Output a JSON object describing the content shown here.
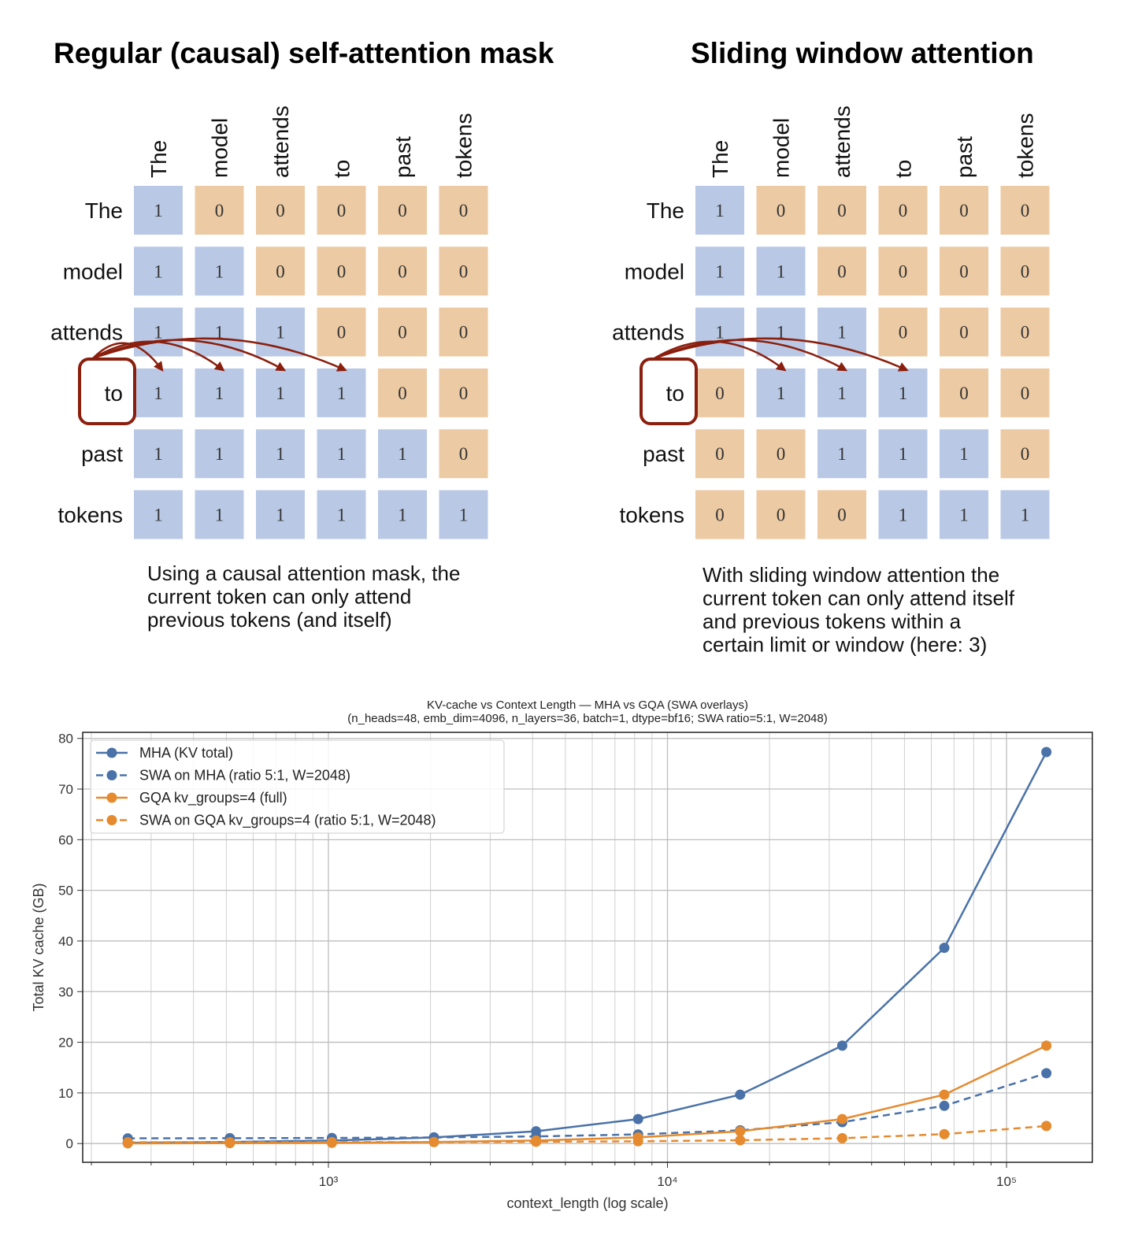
{
  "diagrams": [
    {
      "title": "Regular (causal) self-attention mask",
      "tokens": [
        "The",
        "model",
        "attends",
        "to",
        "past",
        "tokens"
      ],
      "mask": [
        [
          1,
          0,
          0,
          0,
          0,
          0
        ],
        [
          1,
          1,
          0,
          0,
          0,
          0
        ],
        [
          1,
          1,
          1,
          0,
          0,
          0
        ],
        [
          1,
          1,
          1,
          1,
          0,
          0
        ],
        [
          1,
          1,
          1,
          1,
          1,
          0
        ],
        [
          1,
          1,
          1,
          1,
          1,
          1
        ]
      ],
      "caption": [
        "Using a causal attention mask, the",
        "current token can only attend",
        "previous tokens (and itself)"
      ]
    },
    {
      "title": "Sliding window attention",
      "tokens": [
        "The",
        "model",
        "attends",
        "to",
        "past",
        "tokens"
      ],
      "mask": [
        [
          1,
          0,
          0,
          0,
          0,
          0
        ],
        [
          1,
          1,
          0,
          0,
          0,
          0
        ],
        [
          1,
          1,
          1,
          0,
          0,
          0
        ],
        [
          0,
          1,
          1,
          1,
          0,
          0
        ],
        [
          0,
          0,
          1,
          1,
          1,
          0
        ],
        [
          0,
          0,
          0,
          1,
          1,
          1
        ]
      ],
      "caption": [
        "With sliding window attention the",
        "current token can only attend itself",
        "and previous tokens within a",
        "certain limit or window (here: 3)"
      ]
    }
  ],
  "chart_data": {
    "type": "line",
    "title": [
      "KV-cache vs Context Length — MHA vs GQA (SWA overlays)",
      "(n_heads=48, emb_dim=4096, n_layers=36, batch=1, dtype=bf16; SWA ratio=5:1, W=2048)"
    ],
    "x_label": "context_length (log scale)",
    "y_label": "Total KV cache (GB)",
    "x": [
      256,
      512,
      1024,
      2048,
      4096,
      8192,
      16384,
      32768,
      65536,
      131072
    ],
    "series": [
      {
        "name": "MHA (KV total)",
        "color": "#4a72a8",
        "linestyle": "solid",
        "values": [
          0.15,
          0.3,
          0.6,
          1.21,
          2.42,
          4.83,
          9.66,
          19.33,
          38.65,
          77.31
        ]
      },
      {
        "name": "SWA on MHA (ratio 5:1, W=2048)",
        "color": "#4a72a8",
        "linestyle": "dashed",
        "values": [
          1.03,
          1.06,
          1.11,
          1.21,
          1.41,
          1.81,
          2.62,
          4.23,
          7.45,
          13.89
        ]
      },
      {
        "name": "GQA kv_groups=4 (full)",
        "color": "#e58a2e",
        "linestyle": "solid",
        "values": [
          0.04,
          0.08,
          0.15,
          0.3,
          0.6,
          1.21,
          2.42,
          4.83,
          9.66,
          19.33
        ]
      },
      {
        "name": "SWA on GQA kv_groups=4 (ratio 5:1, W=2048)",
        "color": "#e58a2e",
        "linestyle": "dashed",
        "values": [
          0.26,
          0.26,
          0.28,
          0.3,
          0.35,
          0.45,
          0.65,
          1.06,
          1.86,
          3.47
        ]
      }
    ],
    "xscale": "log",
    "xlim": [
      188.5,
      179100
    ],
    "xticks": [
      {
        "value": 1000,
        "label": "10³"
      },
      {
        "value": 10000,
        "label": "10⁴"
      },
      {
        "value": 100000,
        "label": "10⁵"
      }
    ],
    "xminorticks": [
      200,
      300,
      400,
      500,
      600,
      700,
      800,
      900,
      2000,
      3000,
      4000,
      5000,
      6000,
      7000,
      8000,
      9000,
      20000,
      30000,
      40000,
      50000,
      60000,
      70000,
      80000,
      90000
    ],
    "ylim": [
      -3.7,
      81.2
    ],
    "yticks": [
      0,
      10,
      20,
      30,
      40,
      50,
      60,
      70,
      80
    ],
    "grid": true,
    "legend": "upper left"
  }
}
